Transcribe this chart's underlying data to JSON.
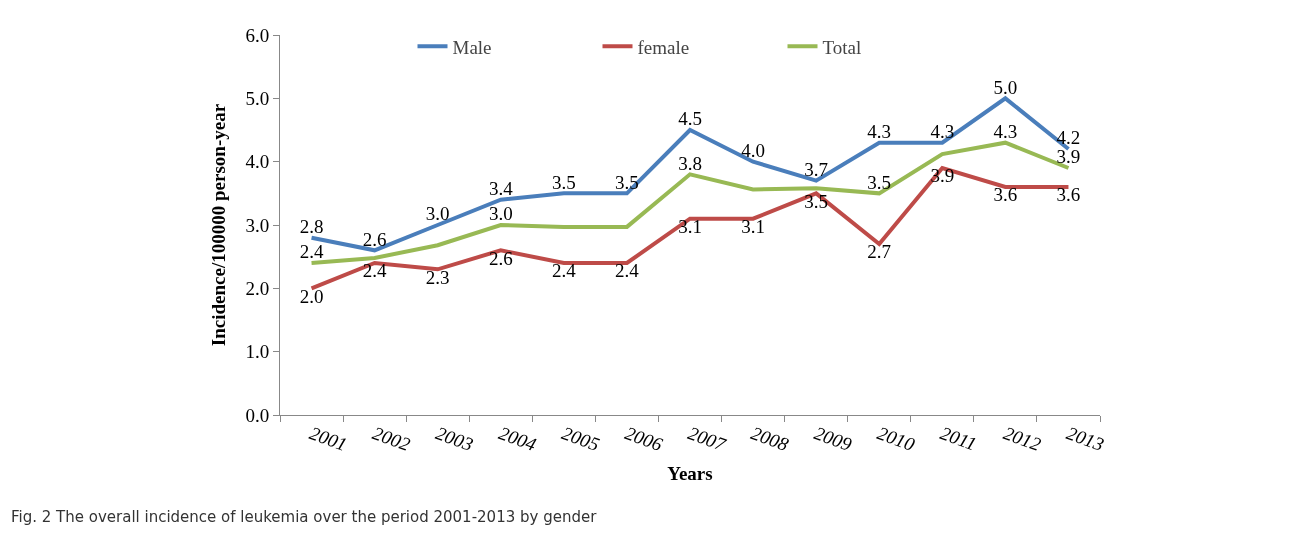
{
  "chart_data": {
    "type": "line",
    "xlabel": "Years",
    "ylabel": "Incidence/100000 person-year",
    "categories": [
      "2001",
      "2002",
      "2003",
      "2004",
      "2005",
      "2006",
      "2007",
      "2008",
      "2009",
      "2010",
      "2011",
      "2012",
      "2013"
    ],
    "series": [
      {
        "name": "Male",
        "color": "#4a7ebb",
        "values": [
          2.8,
          2.6,
          3.0,
          3.4,
          3.5,
          3.5,
          4.5,
          4.0,
          3.7,
          4.3,
          4.3,
          5.0,
          4.2
        ],
        "value_labels": [
          "2.8",
          "2.6",
          "3.0",
          "3.4",
          "3.5",
          "3.5",
          "4.5",
          "4.0",
          "3.7",
          "4.3",
          "4.3",
          "5.0",
          "4.2"
        ]
      },
      {
        "name": "female",
        "color": "#be4b48",
        "values": [
          2.0,
          2.4,
          2.3,
          2.6,
          2.4,
          2.4,
          3.1,
          3.1,
          3.5,
          2.7,
          3.9,
          3.6,
          3.6
        ],
        "value_labels": [
          "2.0",
          "2.4",
          "2.3",
          "2.6",
          "2.4",
          "2.4",
          "3.1",
          "3.1",
          "3.5",
          "2.7",
          "3.9",
          "3.6",
          "3.6"
        ]
      },
      {
        "name": "Total",
        "color": "#98b954",
        "values": [
          2.4,
          2.48,
          2.68,
          3.0,
          2.97,
          2.97,
          3.8,
          3.56,
          3.58,
          3.5,
          4.12,
          4.3,
          3.9
        ],
        "value_labels": [
          "2.4",
          null,
          null,
          "3.0",
          null,
          null,
          "3.8",
          null,
          null,
          "3.5",
          null,
          "4.3",
          "3.9"
        ]
      }
    ],
    "ylim": [
      0,
      6
    ],
    "yticks": [
      {
        "value": 0,
        "label": "0.0"
      },
      {
        "value": 1,
        "label": "1.0"
      },
      {
        "value": 2,
        "label": "2.0"
      },
      {
        "value": 3,
        "label": "3.0"
      },
      {
        "value": 4,
        "label": "4.0"
      },
      {
        "value": 5,
        "label": "5.0"
      },
      {
        "value": 6,
        "label": "6.0"
      }
    ],
    "grid": false,
    "legend": "top",
    "marker": "none",
    "line_style": "solid",
    "annotations": [
      "Fig. 2 The overall incidence of leukemia over the period 2001-2013 by gender"
    ]
  }
}
